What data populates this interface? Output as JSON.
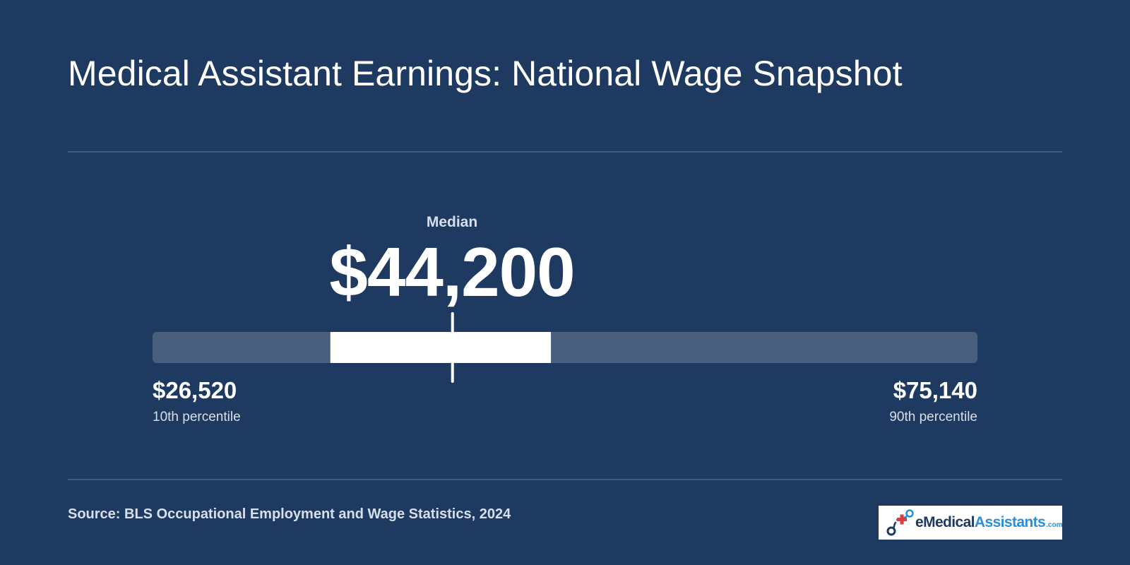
{
  "title": "Medical Assistant Earnings: National Wage Snapshot",
  "chart_data": {
    "type": "range",
    "title": "Medical Assistant Earnings: National Wage Snapshot",
    "min": 26520,
    "max": 75140,
    "median": 44200,
    "iqr": [
      37000,
      50000
    ],
    "median_label": "Median",
    "median_display": "$44,200",
    "low": {
      "display": "$26,520",
      "label": "10th percentile"
    },
    "high": {
      "display": "$75,140",
      "label": "90th percentile"
    },
    "colors": {
      "background": "#1f3a61",
      "track": "#4a5f7e",
      "box": "#ffffff",
      "marker": "#ffffff"
    }
  },
  "source": "Source: BLS Occupational Employment and Wage Statistics, 2024",
  "logo": {
    "part1": "eMedical",
    "part2": "Assistants",
    "part3": ".com",
    "icon": "medical-cross-logo-icon"
  }
}
